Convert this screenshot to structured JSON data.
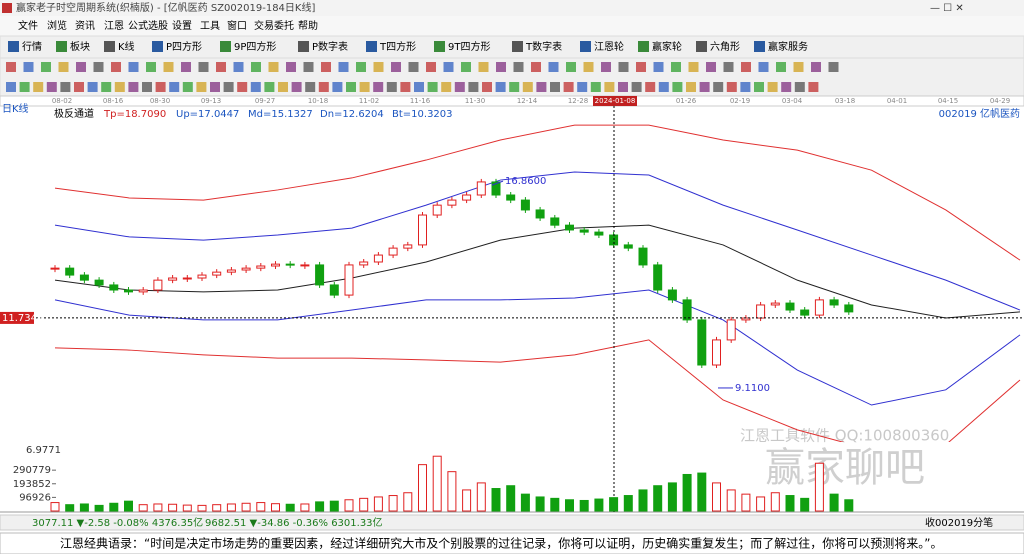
{
  "window": {
    "title": "赢家老子时空周期系统(织楠版) - [亿帆医药  SZ002019-184日K线]",
    "menu": [
      "文件",
      "浏览",
      "资讯",
      "江恩",
      "公式选股",
      "设置",
      "工具",
      "窗口",
      "交易委托",
      "帮助"
    ],
    "toolbar": [
      "行情",
      "板块",
      "K线",
      "P四方形",
      "9P四方形",
      "P数字表",
      "T四方形",
      "9T四方形",
      "T数字表",
      "江恩轮",
      "赢家轮",
      "六角形",
      "赢家服务"
    ]
  },
  "price_chart": {
    "period_label": "日K线",
    "indicator": "极反通道",
    "params": [
      "Tp=18.7090",
      "Up=17.0447",
      "Md=15.1327",
      "Dn=12.6204",
      "Bt=10.3203"
    ],
    "stock": "002019 亿帆医药",
    "dates": [
      "08-02",
      "08-16",
      "08-30",
      "09-13",
      "09-27",
      "10-18",
      "11-02",
      "11-16",
      "11-30",
      "12-14",
      "12-28",
      "2024-01-08",
      "01-26",
      "02-19",
      "03-04",
      "03-18",
      "04-01",
      "04-15",
      "04-29"
    ],
    "current_price": 11.7344,
    "high_label": {
      "value": 16.86,
      "label": "16.8600"
    },
    "low_label": {
      "value": 9.11,
      "label": "9.1100"
    },
    "ylim": [
      7.16,
      19.9
    ],
    "closes": [
      13.6,
      13.34,
      13.15,
      12.97,
      12.78,
      12.71,
      12.78,
      13.15,
      13.23,
      13.23,
      13.34,
      13.45,
      13.53,
      13.6,
      13.68,
      13.75,
      13.72,
      13.72,
      12.97,
      12.59,
      13.72,
      13.83,
      14.09,
      14.35,
      14.47,
      15.59,
      15.96,
      16.15,
      16.34,
      16.83,
      16.34,
      16.15,
      15.78,
      15.48,
      15.21,
      15.03,
      14.95,
      14.84,
      14.47,
      14.35,
      13.72,
      12.78,
      12.41,
      11.66,
      9.97,
      10.91,
      11.66,
      11.73,
      12.22,
      12.29,
      12.03,
      11.84,
      12.41,
      12.22,
      11.96
    ],
    "bands": [
      {
        "color": "#e03030",
        "values": [
          16.6,
          16.23,
          16.15,
          16.53,
          16.98,
          17.65,
          18.4,
          18.96,
          18.96,
          18.4,
          18.02,
          17.27,
          15.78,
          13.9
        ]
      },
      {
        "color": "#3030d0",
        "values": [
          15.21,
          14.77,
          14.65,
          14.84,
          15.1,
          15.96,
          16.9,
          17.2,
          17.09,
          15.96,
          15.03,
          14.09,
          13.15,
          12.03
        ]
      },
      {
        "color": "#202020",
        "values": [
          13.15,
          12.78,
          12.71,
          12.78,
          13.23,
          13.83,
          14.65,
          15.1,
          15.21,
          14.47,
          13.15,
          12.22,
          11.73,
          11.96
        ]
      },
      {
        "color": "#3030d0",
        "values": [
          12.41,
          11.84,
          11.66,
          11.66,
          12.03,
          12.41,
          12.41,
          12.48,
          12.78,
          11.66,
          9.78,
          8.47,
          9.04,
          11.1
        ]
      },
      {
        "color": "#e03030",
        "values": [
          10.61,
          10.53,
          10.35,
          10.23,
          10.23,
          10.16,
          10.08,
          10.35,
          10.91,
          8.66,
          7.54,
          6.79,
          6.98,
          9.41
        ]
      }
    ]
  },
  "volume_chart": {
    "top_label": "6.9771",
    "yticks": [
      96926,
      193852,
      290779
    ],
    "ylim": [
      0,
      420000
    ],
    "values": [
      60000,
      45000,
      50000,
      40000,
      55000,
      70000,
      45000,
      50000,
      48000,
      42000,
      40000,
      45000,
      50000,
      55000,
      60000,
      52000,
      48000,
      50000,
      65000,
      70000,
      80000,
      90000,
      100000,
      110000,
      130000,
      330000,
      390000,
      280000,
      150000,
      200000,
      160000,
      180000,
      120000,
      100000,
      90000,
      80000,
      75000,
      85000,
      95000,
      110000,
      150000,
      180000,
      200000,
      260000,
      270000,
      200000,
      150000,
      120000,
      100000,
      130000,
      110000,
      90000,
      340000,
      120000,
      80000
    ]
  },
  "watermark": [
    "江恩工具软件  QQ:100800360",
    "赢家聊吧"
  ],
  "status_bar": {
    "index1": "3077.11 ▼-2.58 -0.08% 4376.35亿",
    "index2": "9682.51 ▼-34.86 -0.36% 6301.33亿",
    "right": "收002019分笔"
  },
  "quote": "江恩经典语录：“时间是决定市场走势的重要因素，经过详细研究大市及个别股票的过往记录，你将可以证明，历史确实重复发生；而了解过往，你将可以预测将来。”。"
}
